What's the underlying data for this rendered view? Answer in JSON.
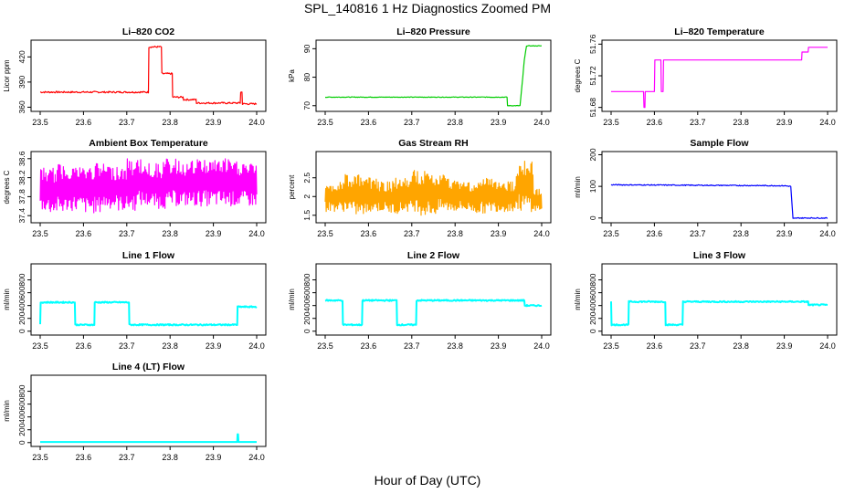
{
  "page": {
    "title": "SPL_140816  1 Hz Diagnostics Zoomed PM",
    "x_axis_title": "Hour of Day (UTC)"
  },
  "colors": {
    "red": "#ff0000",
    "green": "#00cc00",
    "magenta": "#ff00ff",
    "orange": "#ffa500",
    "blue": "#0000ff",
    "cyan": "#00ffff",
    "axis": "#000000"
  },
  "chart_data": [
    {
      "id": "co2",
      "type": "line",
      "title": "Li–820 CO2",
      "ylabel": "Licor ppm",
      "xlim": [
        23.5,
        24.0
      ],
      "ylim": [
        355,
        440
      ],
      "yticks": [
        360,
        390,
        420
      ],
      "xticks": [
        "23.5",
        "23.6",
        "23.7",
        "23.8",
        "23.9",
        "24.0"
      ],
      "color": "#ff0000",
      "noise": 1.0,
      "x": [
        23.5,
        23.75,
        23.751,
        23.78,
        23.781,
        23.805,
        23.806,
        23.83,
        23.831,
        23.86,
        23.861,
        23.962,
        23.963,
        23.966,
        23.967,
        24.0
      ],
      "y": [
        378,
        378,
        432,
        432,
        400,
        400,
        372,
        372,
        369,
        369,
        365,
        365,
        378,
        378,
        364,
        364
      ]
    },
    {
      "id": "pressure",
      "type": "line",
      "title": "Li–820 Pressure",
      "ylabel": "kPa",
      "xlim": [
        23.5,
        24.0
      ],
      "ylim": [
        68,
        93
      ],
      "yticks": [
        70,
        80,
        90
      ],
      "xticks": [
        "23.5",
        "23.6",
        "23.7",
        "23.8",
        "23.9",
        "24.0"
      ],
      "color": "#00cc00",
      "noise": 0.1,
      "x": [
        23.5,
        23.92,
        23.921,
        23.95,
        23.955,
        23.96,
        23.965,
        23.97,
        24.0
      ],
      "y": [
        73,
        73,
        70,
        70,
        78,
        86,
        91,
        91,
        91
      ]
    },
    {
      "id": "li-temp",
      "type": "line",
      "title": "Li–820 Temperature",
      "ylabel": "degrees C",
      "xlim": [
        23.5,
        24.0
      ],
      "ylim": [
        51.675,
        51.765
      ],
      "yticks": [
        51.68,
        51.72,
        51.76
      ],
      "xticks": [
        "23.5",
        "23.6",
        "23.7",
        "23.8",
        "23.9",
        "24.0"
      ],
      "color": "#ff00ff",
      "noise": 0,
      "x": [
        23.5,
        23.575,
        23.576,
        23.578,
        23.579,
        23.6,
        23.601,
        23.615,
        23.616,
        23.62,
        23.621,
        23.7,
        23.701,
        23.94,
        23.941,
        23.955,
        23.956,
        24.0
      ],
      "y": [
        51.7,
        51.7,
        51.68,
        51.68,
        51.7,
        51.7,
        51.74,
        51.74,
        51.7,
        51.7,
        51.74,
        51.74,
        51.74,
        51.74,
        51.75,
        51.75,
        51.756,
        51.756
      ]
    },
    {
      "id": "box-temp",
      "type": "line",
      "title": "Ambient Box Temperature",
      "ylabel": "degrees C",
      "xlim": [
        23.5,
        24.0
      ],
      "ylim": [
        37.25,
        38.75
      ],
      "yticks": [
        37.4,
        37.8,
        38.2,
        38.6
      ],
      "xticks": [
        "23.5",
        "23.6",
        "23.7",
        "23.8",
        "23.9",
        "24.0"
      ],
      "color": "#ff00ff",
      "noise": 0,
      "x": [
        23.5,
        23.52,
        23.54,
        23.56,
        23.58,
        23.6,
        23.62,
        23.64,
        23.66,
        23.68,
        23.7,
        23.72,
        23.74,
        23.76,
        23.78,
        23.8,
        23.82,
        23.84,
        23.86,
        23.88,
        23.9,
        23.92,
        23.94,
        23.96,
        23.98,
        24.0
      ],
      "y": [
        37.5,
        38.4,
        37.45,
        38.5,
        37.5,
        38.45,
        37.45,
        38.5,
        37.55,
        38.45,
        37.5,
        38.6,
        37.6,
        38.5,
        37.55,
        38.6,
        37.6,
        38.55,
        37.6,
        38.6,
        37.6,
        38.6,
        37.6,
        38.55,
        37.6,
        38.5
      ]
    },
    {
      "id": "rh",
      "type": "line",
      "title": "Gas Stream RH",
      "ylabel": "percent",
      "xlim": [
        23.5,
        24.0
      ],
      "ylim": [
        1.3,
        3.2
      ],
      "yticks": [
        1.5,
        2.0,
        2.5
      ],
      "xticks": [
        "23.5",
        "23.6",
        "23.7",
        "23.8",
        "23.9",
        "24.0"
      ],
      "color": "#ffa500",
      "noise": 0,
      "x": [
        23.5,
        23.52,
        23.54,
        23.56,
        23.58,
        23.6,
        23.62,
        23.64,
        23.66,
        23.68,
        23.7,
        23.72,
        23.74,
        23.76,
        23.78,
        23.8,
        23.82,
        23.84,
        23.86,
        23.88,
        23.9,
        23.92,
        23.94,
        23.96,
        23.98,
        24.0
      ],
      "y": [
        1.6,
        2.4,
        1.6,
        2.6,
        1.5,
        2.5,
        1.6,
        2.4,
        1.55,
        2.5,
        1.6,
        2.7,
        1.5,
        2.6,
        1.6,
        2.5,
        1.6,
        2.4,
        1.55,
        2.5,
        1.6,
        2.4,
        1.6,
        3.0,
        1.6,
        2.2
      ]
    },
    {
      "id": "sample-flow",
      "type": "line",
      "title": "Sample Flow",
      "ylabel": "ml/min",
      "xlim": [
        23.5,
        24.0
      ],
      "ylim": [
        -15,
        210
      ],
      "yticks": [
        0,
        100,
        200
      ],
      "xticks": [
        "23.5",
        "23.6",
        "23.7",
        "23.8",
        "23.9",
        "24.0"
      ],
      "color": "#0000ff",
      "noise": 1.5,
      "x": [
        23.5,
        23.9,
        23.915,
        23.92,
        23.93,
        24.0
      ],
      "y": [
        105,
        102,
        100,
        -2,
        0,
        0
      ]
    },
    {
      "id": "line1",
      "type": "line",
      "title": "Line 1 Flow",
      "ylabel": "ml/min",
      "xlim": [
        23.5,
        24.0
      ],
      "ylim": [
        -60,
        1050
      ],
      "yticks": [
        0,
        200,
        400,
        600,
        800
      ],
      "xticks": [
        "23.5",
        "23.6",
        "23.7",
        "23.8",
        "23.9",
        "24.0"
      ],
      "color": "#00ffff",
      "noise": 10,
      "x": [
        23.5,
        23.501,
        23.58,
        23.581,
        23.625,
        23.626,
        23.705,
        23.706,
        23.955,
        23.956,
        24.0
      ],
      "y": [
        100,
        450,
        450,
        100,
        100,
        450,
        450,
        100,
        100,
        380,
        380
      ]
    },
    {
      "id": "line2",
      "type": "line",
      "title": "Line 2 Flow",
      "ylabel": "ml/min",
      "xlim": [
        23.5,
        24.0
      ],
      "ylim": [
        -60,
        1050
      ],
      "yticks": [
        0,
        200,
        400,
        600,
        800
      ],
      "xticks": [
        "23.5",
        "23.6",
        "23.7",
        "23.8",
        "23.9",
        "24.0"
      ],
      "color": "#00ffff",
      "noise": 10,
      "x": [
        23.5,
        23.54,
        23.541,
        23.585,
        23.586,
        23.665,
        23.666,
        23.71,
        23.711,
        23.96,
        23.961,
        24.0
      ],
      "y": [
        480,
        480,
        100,
        100,
        480,
        480,
        100,
        100,
        480,
        480,
        400,
        400
      ]
    },
    {
      "id": "line3",
      "type": "line",
      "title": "Line 3 Flow",
      "ylabel": "ml/min",
      "xlim": [
        23.5,
        24.0
      ],
      "ylim": [
        -60,
        1050
      ],
      "yticks": [
        0,
        200,
        400,
        600,
        800
      ],
      "xticks": [
        "23.5",
        "23.6",
        "23.7",
        "23.8",
        "23.9",
        "24.0"
      ],
      "color": "#00ffff",
      "noise": 10,
      "x": [
        23.5,
        23.501,
        23.502,
        23.54,
        23.541,
        23.625,
        23.626,
        23.665,
        23.666,
        23.955,
        23.956,
        24.0
      ],
      "y": [
        470,
        100,
        100,
        100,
        460,
        460,
        100,
        100,
        460,
        460,
        410,
        410
      ]
    },
    {
      "id": "line4",
      "type": "line",
      "title": "Line 4 (LT) Flow",
      "ylabel": "ml/min",
      "xlim": [
        23.5,
        24.0
      ],
      "ylim": [
        -60,
        1050
      ],
      "yticks": [
        0,
        200,
        400,
        600,
        800
      ],
      "xticks": [
        "23.5",
        "23.6",
        "23.7",
        "23.8",
        "23.9",
        "24.0"
      ],
      "color": "#00ffff",
      "noise": 0,
      "x": [
        23.5,
        23.955,
        23.956,
        23.957,
        23.958,
        24.0
      ],
      "y": [
        10,
        10,
        130,
        130,
        10,
        10
      ]
    }
  ]
}
